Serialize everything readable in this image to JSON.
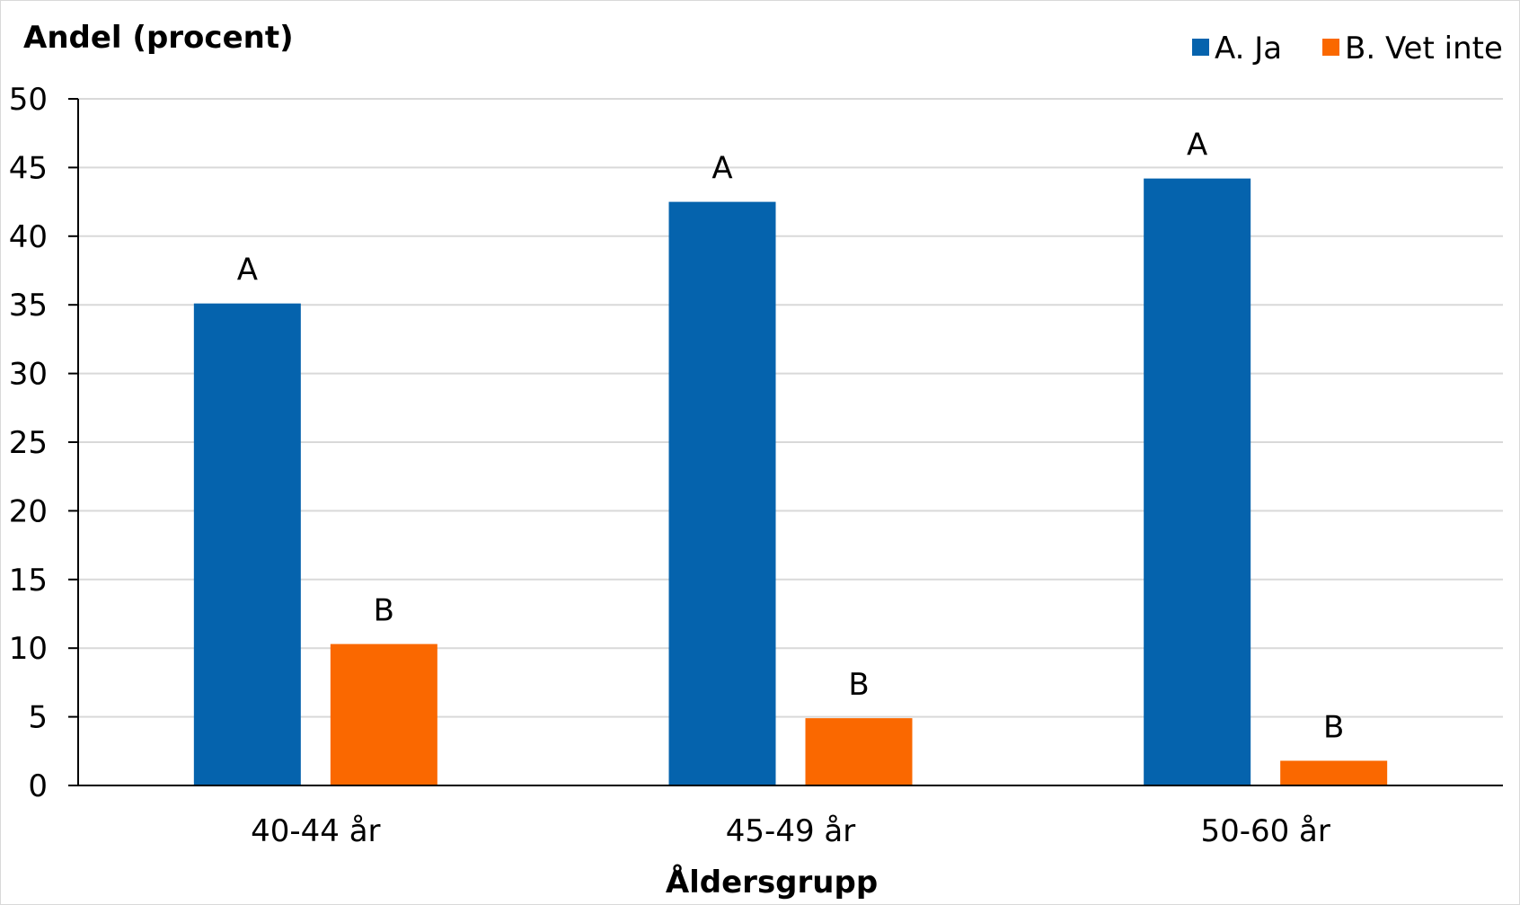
{
  "chart_data": {
    "type": "bar",
    "ylabel": "Andel (procent)",
    "xlabel": "Åldersgrupp",
    "categories": [
      "40-44 år",
      "45-49 år",
      "50-60 år"
    ],
    "ylim": [
      0,
      50
    ],
    "yticks": [
      0,
      5,
      10,
      15,
      20,
      25,
      30,
      35,
      40,
      45,
      50
    ],
    "grid": true,
    "legend_position": "top-right",
    "series": [
      {
        "name": "A. Ja",
        "data_label": "A",
        "color": "#0563ad",
        "values": [
          35.1,
          42.5,
          44.2
        ]
      },
      {
        "name": "B. Vet inte",
        "data_label": "B",
        "color": "#fa6800",
        "values": [
          10.3,
          4.9,
          1.8
        ]
      }
    ]
  }
}
